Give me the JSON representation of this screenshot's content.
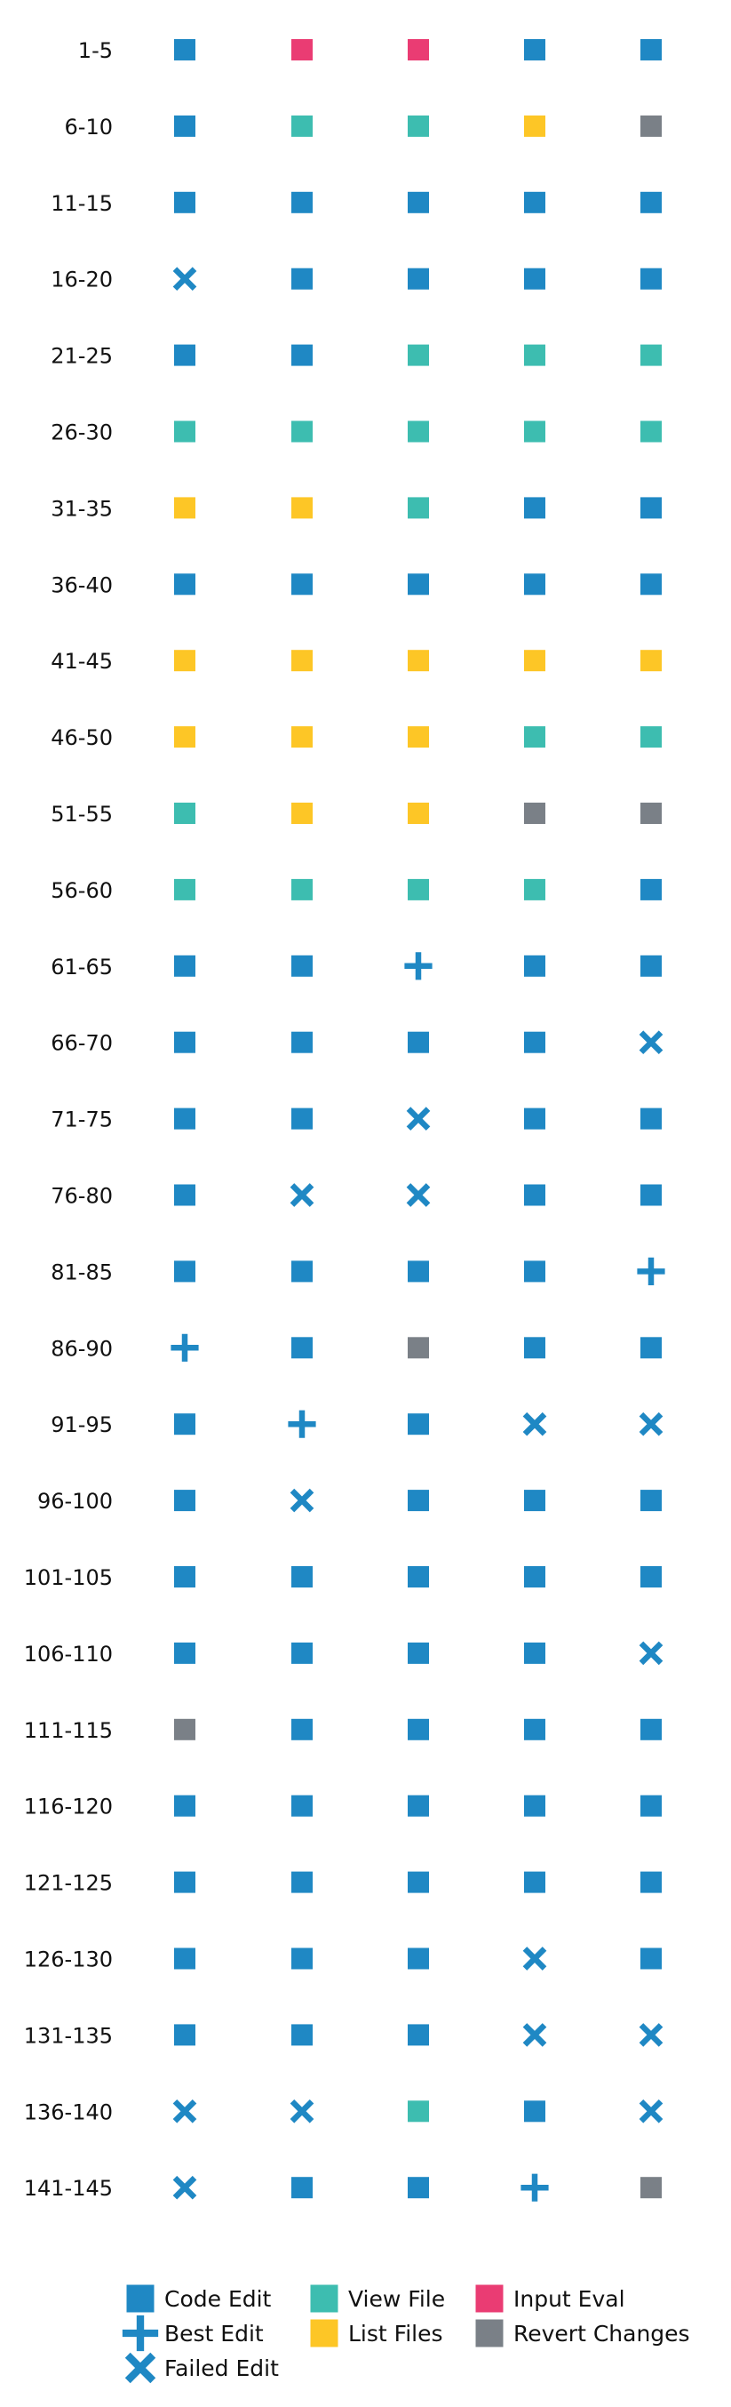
{
  "chart_data": {
    "type": "scatter",
    "rows": [
      "1-5",
      "6-10",
      "11-15",
      "16-20",
      "21-25",
      "26-30",
      "31-35",
      "36-40",
      "41-45",
      "46-50",
      "51-55",
      "56-60",
      "61-65",
      "66-70",
      "71-75",
      "76-80",
      "81-85",
      "86-90",
      "91-95",
      "96-100",
      "101-105",
      "106-110",
      "111-115",
      "116-120",
      "121-125",
      "126-130",
      "131-135",
      "136-140",
      "141-145"
    ],
    "cells": [
      [
        "code",
        "input",
        "input",
        "code",
        "code"
      ],
      [
        "code",
        "view",
        "view",
        "list",
        "revert"
      ],
      [
        "code",
        "code",
        "code",
        "code",
        "code"
      ],
      [
        "failed",
        "code",
        "code",
        "code",
        "code"
      ],
      [
        "code",
        "code",
        "view",
        "view",
        "view"
      ],
      [
        "view",
        "view",
        "view",
        "view",
        "view"
      ],
      [
        "list",
        "list",
        "view",
        "code",
        "code"
      ],
      [
        "code",
        "code",
        "code",
        "code",
        "code"
      ],
      [
        "list",
        "list",
        "list",
        "list",
        "list"
      ],
      [
        "list",
        "list",
        "list",
        "view",
        "view"
      ],
      [
        "view",
        "list",
        "list",
        "revert",
        "revert"
      ],
      [
        "view",
        "view",
        "view",
        "view",
        "code"
      ],
      [
        "code",
        "code",
        "best",
        "code",
        "code"
      ],
      [
        "code",
        "code",
        "code",
        "code",
        "failed"
      ],
      [
        "code",
        "code",
        "failed",
        "code",
        "code"
      ],
      [
        "code",
        "failed",
        "failed",
        "code",
        "code"
      ],
      [
        "code",
        "code",
        "code",
        "code",
        "best"
      ],
      [
        "best",
        "code",
        "revert",
        "code",
        "code"
      ],
      [
        "code",
        "best",
        "code",
        "failed",
        "failed"
      ],
      [
        "code",
        "failed",
        "code",
        "code",
        "code"
      ],
      [
        "code",
        "code",
        "code",
        "code",
        "code"
      ],
      [
        "code",
        "code",
        "code",
        "code",
        "failed"
      ],
      [
        "revert",
        "code",
        "code",
        "code",
        "code"
      ],
      [
        "code",
        "code",
        "code",
        "code",
        "code"
      ],
      [
        "code",
        "code",
        "code",
        "code",
        "code"
      ],
      [
        "code",
        "code",
        "code",
        "failed",
        "code"
      ],
      [
        "code",
        "code",
        "code",
        "failed",
        "failed"
      ],
      [
        "failed",
        "failed",
        "view",
        "code",
        "failed"
      ],
      [
        "failed",
        "code",
        "code",
        "best",
        "revert"
      ]
    ],
    "legend": [
      {
        "key": "code",
        "label": "Code Edit",
        "shape": "square",
        "color": "#1f88c4"
      },
      {
        "key": "best",
        "label": "Best Edit",
        "shape": "plus",
        "color": "#1f88c4"
      },
      {
        "key": "failed",
        "label": "Failed Edit",
        "shape": "x",
        "color": "#1f88c4"
      },
      {
        "key": "view",
        "label": "View File",
        "shape": "square",
        "color": "#3dbdb0"
      },
      {
        "key": "list",
        "label": "List Files",
        "shape": "square",
        "color": "#fdc626"
      },
      {
        "key": "input",
        "label": "Input Eval",
        "shape": "square",
        "color": "#ea3c73"
      },
      {
        "key": "revert",
        "label": "Revert Changes",
        "shape": "square",
        "color": "#7a8087"
      }
    ],
    "legend_placement": "bottom",
    "grid": false
  }
}
